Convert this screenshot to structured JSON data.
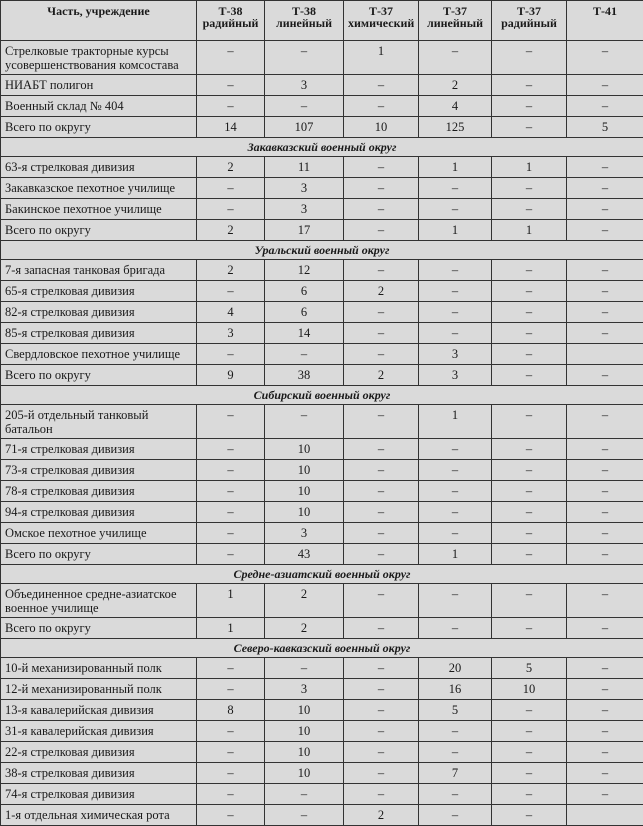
{
  "columns": [
    "Часть, учреждение",
    "Т-38 радийный",
    "Т-38 линейный",
    "Т-37 химический",
    "Т-37 линейный",
    "Т-37 радийный",
    "Т-41"
  ],
  "rows": [
    {
      "type": "row",
      "name": "Стрелковые тракторные курсы усовершенствования комсостава",
      "values": [
        "–",
        "–",
        "1",
        "–",
        "–",
        "–"
      ],
      "lines": 2
    },
    {
      "type": "row",
      "name": "НИАБТ полигон",
      "values": [
        "–",
        "3",
        "–",
        "2",
        "–",
        "–"
      ]
    },
    {
      "type": "row",
      "name": "Военный склад № 404",
      "values": [
        "–",
        "–",
        "–",
        "4",
        "–",
        "–"
      ]
    },
    {
      "type": "row",
      "name": "Всего по округу",
      "values": [
        "14",
        "107",
        "10",
        "125",
        "–",
        "5"
      ]
    },
    {
      "type": "section",
      "name": "Закавказский военный округ"
    },
    {
      "type": "row",
      "name": "63-я стрелковая дивизия",
      "values": [
        "2",
        "11",
        "–",
        "1",
        "1",
        "–"
      ]
    },
    {
      "type": "row",
      "name": "Закавказское пехотное училище",
      "values": [
        "–",
        "3",
        "–",
        "–",
        "–",
        "–"
      ]
    },
    {
      "type": "row",
      "name": "Бакинское пехотное училище",
      "values": [
        "–",
        "3",
        "–",
        "–",
        "–",
        "–"
      ]
    },
    {
      "type": "row",
      "name": "Всего по округу",
      "values": [
        "2",
        "17",
        "–",
        "1",
        "1",
        "–"
      ]
    },
    {
      "type": "section",
      "name": "Уральский военный округ"
    },
    {
      "type": "row",
      "name": "7-я запасная танковая бригада",
      "values": [
        "2",
        "12",
        "–",
        "–",
        "–",
        "–"
      ]
    },
    {
      "type": "row",
      "name": "65-я стрелковая дивизия",
      "values": [
        "–",
        "6",
        "2",
        "–",
        "–",
        "–"
      ]
    },
    {
      "type": "row",
      "name": "82-я стрелковая дивизия",
      "values": [
        "4",
        "6",
        "–",
        "–",
        "–",
        "–"
      ]
    },
    {
      "type": "row",
      "name": "85-я стрелковая дивизия",
      "values": [
        "3",
        "14",
        "–",
        "–",
        "–",
        "–"
      ]
    },
    {
      "type": "row",
      "name": "Свердловское пехотное училище",
      "values": [
        "–",
        "–",
        "–",
        "3",
        "–",
        ""
      ]
    },
    {
      "type": "row",
      "name": "Всего по округу",
      "values": [
        "9",
        "38",
        "2",
        "3",
        "–",
        "–"
      ]
    },
    {
      "type": "section",
      "name": "Сибирский военный округ"
    },
    {
      "type": "row",
      "name": "205-й отдельный танковый батальон",
      "values": [
        "–",
        "–",
        "–",
        "1",
        "–",
        "–"
      ],
      "lines": 2
    },
    {
      "type": "row",
      "name": "71-я стрелковая дивизия",
      "values": [
        "–",
        "10",
        "–",
        "–",
        "–",
        "–"
      ]
    },
    {
      "type": "row",
      "name": "73-я стрелковая дивизия",
      "values": [
        "–",
        "10",
        "–",
        "–",
        "–",
        "–"
      ]
    },
    {
      "type": "row",
      "name": "78-я стрелковая дивизия",
      "values": [
        "–",
        "10",
        "–",
        "–",
        "–",
        "–"
      ]
    },
    {
      "type": "row",
      "name": "94-я стрелковая дивизия",
      "values": [
        "–",
        "10",
        "–",
        "–",
        "–",
        "–"
      ]
    },
    {
      "type": "row",
      "name": "Омское пехотное училище",
      "values": [
        "–",
        "3",
        "–",
        "–",
        "–",
        "–"
      ]
    },
    {
      "type": "row",
      "name": "Всего по округу",
      "values": [
        "–",
        "43",
        "–",
        "1",
        "–",
        "–"
      ]
    },
    {
      "type": "section",
      "name": "Средне-азиатский военный округ"
    },
    {
      "type": "row",
      "name": "Объединенное средне-азиатское военное училище",
      "values": [
        "1",
        "2",
        "–",
        "–",
        "–",
        "–"
      ],
      "lines": 2
    },
    {
      "type": "row",
      "name": "Всего по округу",
      "values": [
        "1",
        "2",
        "–",
        "–",
        "–",
        "–"
      ]
    },
    {
      "type": "section",
      "name": "Северо-кавказский военный округ"
    },
    {
      "type": "row",
      "name": "10-й механизированный полк",
      "values": [
        "–",
        "–",
        "–",
        "20",
        "5",
        "–"
      ]
    },
    {
      "type": "row",
      "name": "12-й механизированный полк",
      "values": [
        "–",
        "3",
        "–",
        "16",
        "10",
        "–"
      ]
    },
    {
      "type": "row",
      "name": "13-я кавалерийская дивизия",
      "values": [
        "8",
        "10",
        "–",
        "5",
        "–",
        "–"
      ]
    },
    {
      "type": "row",
      "name": "31-я кавалерийская дивизия",
      "values": [
        "–",
        "10",
        "–",
        "–",
        "–",
        "–"
      ]
    },
    {
      "type": "row",
      "name": "22-я стрелковая дивизия",
      "values": [
        "–",
        "10",
        "–",
        "–",
        "–",
        "–"
      ]
    },
    {
      "type": "row",
      "name": "38-я стрелковая дивизия",
      "values": [
        "–",
        "10",
        "–",
        "7",
        "–",
        "–"
      ]
    },
    {
      "type": "row",
      "name": "74-я стрелковая дивизия",
      "values": [
        "–",
        "–",
        "–",
        "–",
        "–",
        "–"
      ]
    },
    {
      "type": "row",
      "name": "1-я отдельная химическая рота",
      "values": [
        "–",
        "–",
        "2",
        "–",
        "–",
        ""
      ]
    }
  ]
}
